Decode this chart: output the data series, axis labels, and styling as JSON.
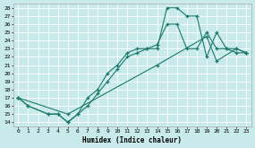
{
  "xlabel": "Humidex (Indice chaleur)",
  "bg_color": "#c8eaea",
  "grid_color": "#ffffff",
  "line_color": "#1a7a6a",
  "xlim": [
    -0.5,
    23.5
  ],
  "ylim": [
    13.5,
    28.5
  ],
  "xticks": [
    0,
    1,
    2,
    3,
    4,
    5,
    6,
    7,
    8,
    9,
    10,
    11,
    12,
    13,
    14,
    15,
    16,
    17,
    18,
    19,
    20,
    21,
    22,
    23
  ],
  "yticks": [
    14,
    15,
    16,
    17,
    18,
    19,
    20,
    21,
    22,
    23,
    24,
    25,
    26,
    27,
    28
  ],
  "line1_x": [
    0,
    1,
    3,
    4,
    5,
    6,
    7,
    8,
    9,
    10,
    11,
    12,
    13,
    14,
    15,
    16,
    17,
    18,
    19,
    20,
    21,
    22,
    23
  ],
  "line1_y": [
    17,
    16,
    15,
    15,
    14,
    15,
    16,
    17.5,
    19,
    20.5,
    22,
    22.5,
    23,
    23,
    28,
    28,
    27,
    27,
    22,
    25,
    23,
    23,
    22.5
  ],
  "line2_x": [
    0,
    1,
    3,
    4,
    5,
    6,
    7,
    8,
    9,
    10,
    11,
    12,
    13,
    14,
    15,
    16,
    17,
    18,
    19,
    20,
    21,
    22,
    23
  ],
  "line2_y": [
    17,
    16,
    15,
    15,
    14,
    15,
    17,
    18,
    20,
    21,
    22.5,
    23,
    23,
    23.5,
    26,
    26,
    23,
    23,
    25,
    23,
    23,
    22.5,
    22.5
  ],
  "line3_x": [
    0,
    5,
    14,
    19,
    20,
    22,
    23
  ],
  "line3_y": [
    17,
    15,
    21,
    24.5,
    21.5,
    23,
    22.5
  ]
}
